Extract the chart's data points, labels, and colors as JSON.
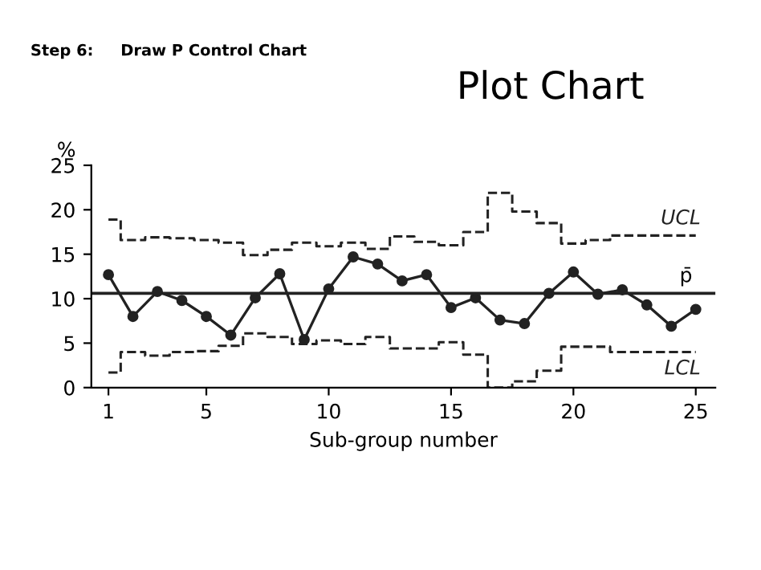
{
  "chart_data": {
    "type": "line",
    "title": "Plot Chart",
    "annotations": [
      "Step 6:     Draw P Control Chart"
    ],
    "xlabel": "Sub-group number",
    "ylabel": "%",
    "xlim": [
      0.3,
      25.8
    ],
    "ylim": [
      0,
      25
    ],
    "xticks": [
      1,
      5,
      10,
      15,
      20,
      25
    ],
    "yticks": [
      0,
      5,
      10,
      15,
      20,
      25
    ],
    "grid": false,
    "legend": false,
    "series": [
      {
        "name": "UCL",
        "type": "step",
        "line_style": "dashed",
        "marker": "none",
        "color": "#222222",
        "x": [
          1,
          2,
          3,
          4,
          5,
          6,
          7,
          8,
          9,
          10,
          11,
          12,
          13,
          14,
          15,
          16,
          17,
          18,
          19,
          20,
          21,
          22,
          23,
          24,
          25
        ],
        "values": [
          18.9,
          16.6,
          16.9,
          16.8,
          16.6,
          16.3,
          14.9,
          15.5,
          16.3,
          15.9,
          16.3,
          15.6,
          17.0,
          16.4,
          16.0,
          17.5,
          21.9,
          19.8,
          18.5,
          16.2,
          16.6,
          17.1,
          17.1,
          17.1,
          17.1
        ]
      },
      {
        "name": "LCL",
        "type": "step",
        "line_style": "dashed",
        "marker": "none",
        "color": "#222222",
        "x": [
          1,
          2,
          3,
          4,
          5,
          6,
          7,
          8,
          9,
          10,
          11,
          12,
          13,
          14,
          15,
          16,
          17,
          18,
          19,
          20,
          21,
          22,
          23,
          24,
          25
        ],
        "values": [
          1.7,
          4.0,
          3.6,
          4.0,
          4.1,
          4.7,
          6.1,
          5.7,
          4.9,
          5.3,
          4.9,
          5.7,
          4.4,
          4.4,
          5.1,
          3.7,
          0,
          0.7,
          1.9,
          4.6,
          4.6,
          4.0,
          4.0,
          4.0,
          4.0
        ]
      },
      {
        "line_style": "solid",
        "marker": "circle",
        "color": "#222222",
        "x": [
          1,
          2,
          3,
          4,
          5,
          6,
          7,
          8,
          9,
          10,
          11,
          12,
          13,
          14,
          15,
          16,
          17,
          18,
          19,
          20,
          21,
          22,
          23,
          24,
          25
        ],
        "values": [
          12.7,
          8.0,
          10.8,
          9.8,
          8.0,
          5.9,
          10.1,
          12.8,
          5.4,
          11.1,
          14.7,
          13.9,
          12.0,
          12.7,
          9.0,
          10.1,
          7.6,
          7.2,
          10.6,
          13.0,
          10.5,
          11.0,
          9.3,
          6.9,
          8.8
        ]
      }
    ],
    "ref_lines": [
      {
        "axis": "y",
        "value": 10.6,
        "label": "p̄",
        "color": "#222222",
        "line_style": "solid"
      }
    ]
  }
}
